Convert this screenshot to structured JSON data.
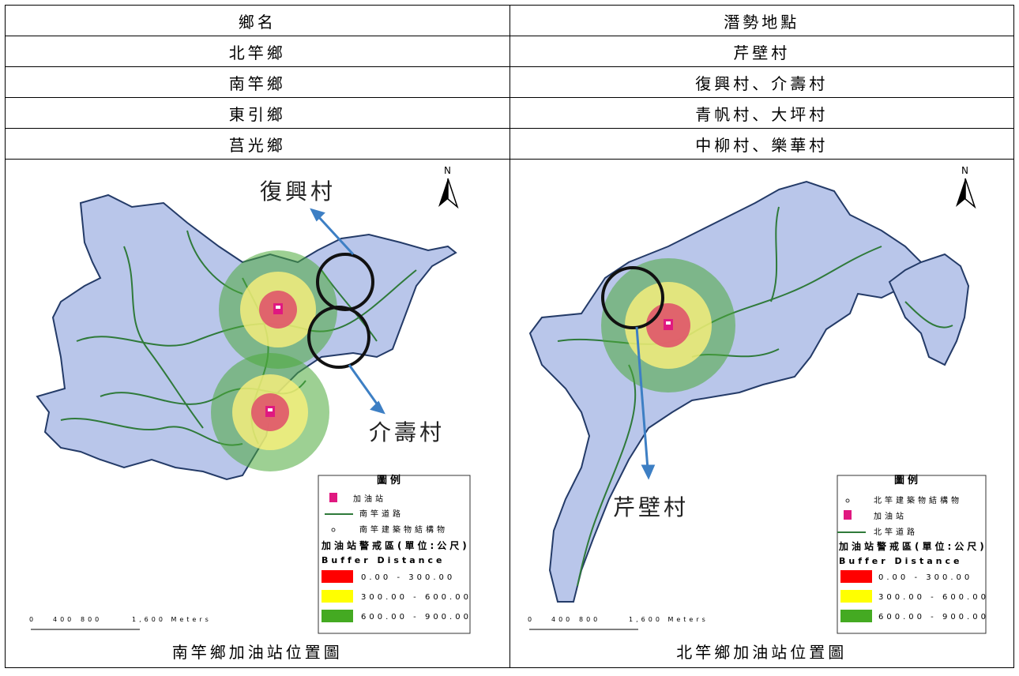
{
  "table": {
    "header": {
      "township": "鄉名",
      "site": "潛勢地點"
    },
    "rows": [
      {
        "township": "北竿鄉",
        "site": "芹壁村"
      },
      {
        "township": "南竿鄉",
        "site": "復興村、介壽村"
      },
      {
        "township": "東引鄉",
        "site": "青帆村、大坪村"
      },
      {
        "township": "莒光鄉",
        "site": "中柳村、樂華村"
      }
    ]
  },
  "maps": [
    {
      "north": "N",
      "callouts": [
        "復興村",
        "介壽村"
      ],
      "legend": {
        "title": "圖例",
        "items": [
          "加油站",
          "南竿道路",
          "南竿建築物結構物"
        ],
        "buffer_title": "加油站警戒區(單位:公尺)",
        "buffer_sub": "Buffer Distance",
        "classes": [
          {
            "label": "0.00 - 300.00",
            "color": "#ff0000"
          },
          {
            "label": "300.00 - 600.00",
            "color": "#ffff00"
          },
          {
            "label": "600.00 - 900.00",
            "color": "#44aa22"
          }
        ]
      },
      "scale": {
        "ticks": [
          "0",
          "400",
          "800",
          "1,600 Meters"
        ]
      },
      "caption": "南竿鄉加油站位置圖"
    },
    {
      "north": "N",
      "callouts": [
        "芹壁村"
      ],
      "legend": {
        "title": "圖例",
        "items": [
          "北竿建築物結構物",
          "加油站",
          "北竿道路"
        ],
        "buffer_title": "加油站警戒區(單位:公尺)",
        "buffer_sub": "Buffer Distance",
        "classes": [
          {
            "label": "0.00 - 300.00",
            "color": "#ff0000"
          },
          {
            "label": "300.00 - 600.00",
            "color": "#ffff00"
          },
          {
            "label": "600.00 - 900.00",
            "color": "#44aa22"
          }
        ]
      },
      "scale": {
        "ticks": [
          "0",
          "400",
          "800",
          "1,600 Meters"
        ]
      },
      "caption": "北竿鄉加油站位置圖"
    }
  ]
}
